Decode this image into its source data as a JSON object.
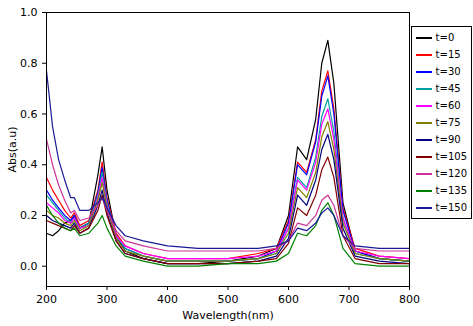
{
  "chart_data": {
    "type": "line",
    "x_label": "Wavelength(nm)",
    "y_label": "Abs(a.u)",
    "xlim": [
      200,
      800
    ],
    "xticks": [
      200,
      300,
      400,
      500,
      600,
      700,
      800
    ],
    "ylim": [
      -0.08,
      1.0
    ],
    "yticks": [
      {
        "value": 0,
        "label": "0.0"
      },
      {
        "value": 0.2,
        "label": "0.2"
      },
      {
        "value": 0.4,
        "label": "0.4"
      },
      {
        "value": 0.6,
        "label": "0.6"
      },
      {
        "value": 0.8,
        "label": "0.8"
      },
      {
        "value": 1,
        "label": "1.0"
      }
    ],
    "grid": false,
    "legend": "top-right",
    "x": [
      200,
      210,
      220,
      230,
      240,
      246,
      255,
      270,
      285,
      292,
      300,
      315,
      330,
      360,
      400,
      450,
      500,
      550,
      580,
      600,
      615,
      630,
      645,
      655,
      665,
      675,
      690,
      710,
      750,
      800
    ],
    "series": [
      {
        "name": "t=0",
        "color": "#000000",
        "values": [
          0.13,
          0.12,
          0.14,
          0.17,
          0.18,
          0.2,
          0.15,
          0.17,
          0.36,
          0.47,
          0.3,
          0.12,
          0.06,
          0.03,
          0.01,
          0.01,
          0.02,
          0.04,
          0.07,
          0.2,
          0.47,
          0.42,
          0.58,
          0.8,
          0.89,
          0.72,
          0.25,
          0.06,
          0.03,
          0.02
        ]
      },
      {
        "name": "t=15",
        "color": "#ff0000",
        "values": [
          0.35,
          0.3,
          0.26,
          0.22,
          0.19,
          0.21,
          0.16,
          0.18,
          0.3,
          0.41,
          0.27,
          0.13,
          0.08,
          0.05,
          0.03,
          0.03,
          0.03,
          0.05,
          0.07,
          0.18,
          0.41,
          0.37,
          0.5,
          0.69,
          0.77,
          0.62,
          0.23,
          0.07,
          0.04,
          0.03
        ]
      },
      {
        "name": "t=30",
        "color": "#0000ff",
        "values": [
          0.3,
          0.26,
          0.23,
          0.2,
          0.18,
          0.2,
          0.15,
          0.17,
          0.29,
          0.39,
          0.26,
          0.12,
          0.07,
          0.04,
          0.02,
          0.02,
          0.02,
          0.03,
          0.06,
          0.17,
          0.4,
          0.36,
          0.49,
          0.67,
          0.75,
          0.6,
          0.22,
          0.06,
          0.03,
          0.02
        ]
      },
      {
        "name": "t=45",
        "color": "#00a0a0",
        "values": [
          0.28,
          0.25,
          0.22,
          0.19,
          0.17,
          0.19,
          0.15,
          0.17,
          0.28,
          0.37,
          0.25,
          0.12,
          0.07,
          0.04,
          0.02,
          0.02,
          0.02,
          0.03,
          0.05,
          0.15,
          0.35,
          0.31,
          0.43,
          0.59,
          0.66,
          0.53,
          0.19,
          0.05,
          0.03,
          0.02
        ]
      },
      {
        "name": "t=60",
        "color": "#ff00ff",
        "values": [
          0.25,
          0.23,
          0.21,
          0.18,
          0.17,
          0.19,
          0.15,
          0.16,
          0.27,
          0.35,
          0.24,
          0.12,
          0.08,
          0.05,
          0.03,
          0.03,
          0.03,
          0.04,
          0.06,
          0.15,
          0.34,
          0.3,
          0.41,
          0.56,
          0.62,
          0.5,
          0.19,
          0.06,
          0.04,
          0.03
        ]
      },
      {
        "name": "t=75",
        "color": "#808000",
        "values": [
          0.22,
          0.2,
          0.19,
          0.17,
          0.16,
          0.18,
          0.14,
          0.16,
          0.26,
          0.33,
          0.23,
          0.11,
          0.06,
          0.04,
          0.02,
          0.02,
          0.02,
          0.03,
          0.05,
          0.13,
          0.31,
          0.27,
          0.37,
          0.51,
          0.57,
          0.46,
          0.17,
          0.05,
          0.03,
          0.02
        ]
      },
      {
        "name": "t=90",
        "color": "#000080",
        "values": [
          0.2,
          0.18,
          0.17,
          0.16,
          0.15,
          0.17,
          0.13,
          0.15,
          0.24,
          0.3,
          0.21,
          0.1,
          0.05,
          0.03,
          0.01,
          0.01,
          0.01,
          0.02,
          0.04,
          0.11,
          0.28,
          0.24,
          0.34,
          0.46,
          0.52,
          0.42,
          0.15,
          0.04,
          0.02,
          0.01
        ]
      },
      {
        "name": "t=105",
        "color": "#800000",
        "values": [
          0.18,
          0.17,
          0.16,
          0.15,
          0.14,
          0.16,
          0.13,
          0.15,
          0.22,
          0.28,
          0.2,
          0.1,
          0.05,
          0.03,
          0.01,
          0.01,
          0.01,
          0.02,
          0.03,
          0.09,
          0.23,
          0.2,
          0.28,
          0.38,
          0.43,
          0.35,
          0.12,
          0.03,
          0.01,
          0.01
        ]
      },
      {
        "name": "t=120",
        "color": "#cc3399",
        "values": [
          0.5,
          0.4,
          0.32,
          0.26,
          0.21,
          0.22,
          0.18,
          0.19,
          0.24,
          0.27,
          0.22,
          0.14,
          0.1,
          0.08,
          0.06,
          0.06,
          0.06,
          0.06,
          0.07,
          0.1,
          0.17,
          0.16,
          0.2,
          0.26,
          0.28,
          0.24,
          0.12,
          0.07,
          0.06,
          0.06
        ]
      },
      {
        "name": "t=135",
        "color": "#008000",
        "values": [
          0.24,
          0.2,
          0.17,
          0.15,
          0.14,
          0.15,
          0.12,
          0.13,
          0.17,
          0.2,
          0.15,
          0.08,
          0.04,
          0.02,
          0,
          0,
          0.01,
          0.01,
          0.02,
          0.05,
          0.13,
          0.12,
          0.16,
          0.22,
          0.25,
          0.2,
          0.07,
          0.01,
          0,
          0
        ]
      },
      {
        "name": "t=150",
        "color": "#1a1a99",
        "values": [
          0.77,
          0.55,
          0.42,
          0.34,
          0.27,
          0.27,
          0.22,
          0.22,
          0.25,
          0.27,
          0.23,
          0.16,
          0.12,
          0.1,
          0.08,
          0.07,
          0.07,
          0.07,
          0.08,
          0.1,
          0.15,
          0.14,
          0.17,
          0.21,
          0.23,
          0.2,
          0.12,
          0.08,
          0.07,
          0.07
        ]
      }
    ]
  }
}
